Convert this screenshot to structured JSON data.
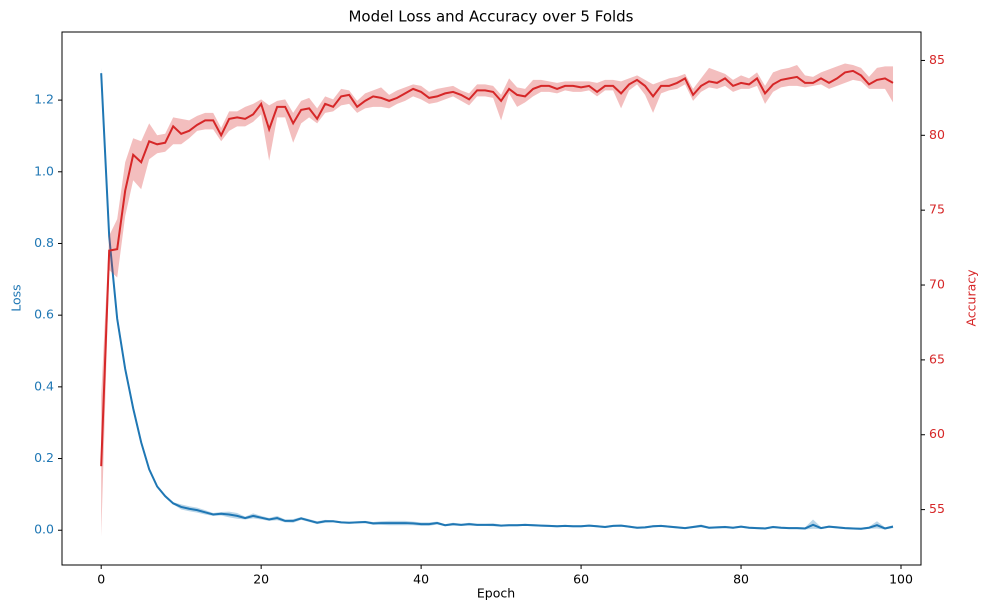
{
  "chart_data": {
    "type": "line-band",
    "title": "Model Loss and Accuracy over 5 Folds",
    "xlabel": "Epoch",
    "ylabel": "Loss",
    "y2label": "Accuracy",
    "x": [
      0,
      1,
      2,
      3,
      4,
      5,
      6,
      7,
      8,
      9,
      10,
      11,
      12,
      13,
      14,
      15,
      16,
      17,
      18,
      19,
      20,
      21,
      22,
      23,
      24,
      25,
      26,
      27,
      28,
      29,
      30,
      31,
      32,
      33,
      34,
      35,
      36,
      37,
      38,
      39,
      40,
      41,
      42,
      43,
      44,
      45,
      46,
      47,
      48,
      49,
      50,
      51,
      52,
      53,
      54,
      55,
      56,
      57,
      58,
      59,
      60,
      61,
      62,
      63,
      64,
      65,
      66,
      67,
      68,
      69,
      70,
      71,
      72,
      73,
      74,
      75,
      76,
      77,
      78,
      79,
      80,
      81,
      82,
      83,
      84,
      85,
      86,
      87,
      88,
      89,
      90,
      91,
      92,
      93,
      94,
      95,
      96,
      97,
      98,
      99
    ],
    "xlim": [
      -4.9,
      102.5
    ],
    "xticks": [
      0,
      20,
      40,
      60,
      80,
      100
    ],
    "ylim": [
      -0.097,
      1.39
    ],
    "yticks": [
      {
        "value": 0,
        "label": "0.0"
      },
      0.2,
      0.4,
      0.6,
      0.8,
      {
        "value": 1,
        "label": "1.0"
      },
      1.2
    ],
    "y2lim": [
      51.3,
      86.9
    ],
    "y2ticks": [
      55,
      60,
      65,
      70,
      75,
      80,
      85
    ],
    "series": [
      {
        "color": "#1f77b4",
        "axis": "y",
        "values": [
          1.275,
          0.82,
          0.59,
          0.45,
          0.34,
          0.245,
          0.17,
          0.122,
          0.095,
          0.075,
          0.065,
          0.06,
          0.056,
          0.05,
          0.044,
          0.046,
          0.044,
          0.04,
          0.034,
          0.04,
          0.035,
          0.03,
          0.034,
          0.026,
          0.026,
          0.033,
          0.027,
          0.021,
          0.025,
          0.025,
          0.022,
          0.021,
          0.022,
          0.023,
          0.019,
          0.02,
          0.02,
          0.02,
          0.02,
          0.019,
          0.017,
          0.017,
          0.02,
          0.014,
          0.017,
          0.015,
          0.017,
          0.015,
          0.015,
          0.015,
          0.013,
          0.014,
          0.014,
          0.015,
          0.014,
          0.013,
          0.012,
          0.011,
          0.012,
          0.011,
          0.011,
          0.013,
          0.011,
          0.009,
          0.012,
          0.013,
          0.01,
          0.007,
          0.008,
          0.011,
          0.012,
          0.01,
          0.008,
          0.006,
          0.009,
          0.012,
          0.007,
          0.008,
          0.009,
          0.007,
          0.01,
          0.007,
          0.006,
          0.005,
          0.009,
          0.007,
          0.006,
          0.006,
          0.005,
          0.015,
          0.006,
          0.01,
          0.008,
          0.006,
          0.005,
          0.004,
          0.007,
          0.014,
          0.005,
          0.01
        ],
        "lower": [
          1.26,
          0.8,
          0.575,
          0.44,
          0.33,
          0.238,
          0.165,
          0.118,
          0.092,
          0.072,
          0.058,
          0.053,
          0.049,
          0.044,
          0.04,
          0.041,
          0.036,
          0.032,
          0.03,
          0.033,
          0.03,
          0.026,
          0.028,
          0.022,
          0.021,
          0.029,
          0.023,
          0.017,
          0.021,
          0.022,
          0.019,
          0.018,
          0.019,
          0.02,
          0.015,
          0.015,
          0.014,
          0.014,
          0.014,
          0.014,
          0.012,
          0.012,
          0.016,
          0.011,
          0.013,
          0.012,
          0.013,
          0.012,
          0.012,
          0.011,
          0.01,
          0.011,
          0.011,
          0.012,
          0.011,
          0.01,
          0.009,
          0.008,
          0.009,
          0.008,
          0.008,
          0.01,
          0.008,
          0.006,
          0.009,
          0.01,
          0.007,
          0.004,
          0.005,
          0.008,
          0.009,
          0.007,
          0.005,
          0.003,
          0.006,
          0.008,
          0.004,
          0.005,
          0.006,
          0.004,
          0.007,
          0.004,
          0.003,
          0.002,
          0.006,
          0.004,
          0.003,
          0.003,
          0.002,
          0.004,
          0.003,
          0.007,
          0.005,
          0.003,
          0.002,
          0.001,
          0.004,
          0.005,
          0.002,
          0.006
        ],
        "upper": [
          1.29,
          0.84,
          0.605,
          0.46,
          0.35,
          0.252,
          0.175,
          0.126,
          0.098,
          0.078,
          0.072,
          0.067,
          0.063,
          0.056,
          0.048,
          0.051,
          0.052,
          0.048,
          0.038,
          0.047,
          0.04,
          0.034,
          0.04,
          0.03,
          0.031,
          0.037,
          0.031,
          0.025,
          0.029,
          0.028,
          0.025,
          0.024,
          0.025,
          0.026,
          0.023,
          0.025,
          0.026,
          0.026,
          0.026,
          0.024,
          0.022,
          0.022,
          0.024,
          0.017,
          0.021,
          0.018,
          0.021,
          0.018,
          0.018,
          0.019,
          0.016,
          0.017,
          0.017,
          0.018,
          0.017,
          0.016,
          0.015,
          0.014,
          0.015,
          0.014,
          0.014,
          0.016,
          0.014,
          0.012,
          0.015,
          0.016,
          0.013,
          0.01,
          0.011,
          0.014,
          0.015,
          0.013,
          0.011,
          0.009,
          0.012,
          0.016,
          0.01,
          0.011,
          0.012,
          0.01,
          0.013,
          0.01,
          0.009,
          0.008,
          0.012,
          0.01,
          0.009,
          0.009,
          0.008,
          0.03,
          0.009,
          0.013,
          0.011,
          0.009,
          0.008,
          0.007,
          0.01,
          0.025,
          0.008,
          0.014
        ]
      },
      {
        "color": "#d62728",
        "axis": "y2",
        "values": [
          57.9,
          72.3,
          72.4,
          76.3,
          78.7,
          78.2,
          79.6,
          79.4,
          79.5,
          80.6,
          80.1,
          80.3,
          80.7,
          81.0,
          81.0,
          80.0,
          81.1,
          81.2,
          81.1,
          81.4,
          82.1,
          80.4,
          81.9,
          81.9,
          80.8,
          81.7,
          81.8,
          81.1,
          82.1,
          81.9,
          82.6,
          82.7,
          81.9,
          82.3,
          82.6,
          82.5,
          82.3,
          82.5,
          82.8,
          83.1,
          82.9,
          82.5,
          82.6,
          82.8,
          82.9,
          82.7,
          82.4,
          83.0,
          83.0,
          82.9,
          82.3,
          83.1,
          82.7,
          82.6,
          83.1,
          83.3,
          83.3,
          83.1,
          83.3,
          83.3,
          83.2,
          83.3,
          82.9,
          83.3,
          83.3,
          82.8,
          83.4,
          83.7,
          83.3,
          82.6,
          83.3,
          83.3,
          83.5,
          83.8,
          82.7,
          83.3,
          83.6,
          83.5,
          83.8,
          83.3,
          83.5,
          83.4,
          83.8,
          82.8,
          83.4,
          83.7,
          83.8,
          83.9,
          83.5,
          83.5,
          83.8,
          83.5,
          83.8,
          84.2,
          84.3,
          84.0,
          83.4,
          83.7,
          83.8,
          83.5
        ],
        "lower": [
          53.2,
          71.0,
          70.5,
          74.6,
          77.0,
          76.4,
          78.4,
          78.8,
          78.9,
          79.4,
          79.4,
          79.8,
          80.3,
          80.4,
          80.4,
          79.6,
          80.3,
          80.6,
          80.6,
          80.9,
          81.4,
          78.3,
          81.2,
          81.2,
          79.5,
          80.8,
          81.2,
          80.8,
          81.5,
          81.6,
          82.0,
          82.1,
          81.5,
          81.8,
          81.9,
          81.9,
          81.8,
          82.1,
          82.3,
          82.6,
          82.4,
          82.1,
          82.2,
          82.4,
          82.6,
          82.3,
          82.0,
          82.6,
          82.6,
          82.5,
          81.0,
          82.8,
          81.9,
          82.2,
          82.6,
          82.9,
          82.9,
          82.8,
          83.0,
          82.9,
          82.9,
          83.0,
          82.6,
          83.0,
          83.0,
          81.8,
          83.0,
          83.4,
          82.7,
          81.5,
          82.8,
          83.0,
          83.1,
          83.4,
          82.3,
          82.9,
          83.2,
          83.1,
          83.3,
          82.9,
          83.1,
          83.1,
          83.3,
          82.1,
          82.9,
          83.2,
          83.3,
          83.3,
          83.2,
          83.3,
          83.4,
          83.1,
          83.3,
          83.5,
          83.7,
          83.6,
          83.1,
          83.1,
          83.1,
          82.2
        ],
        "upper": [
          62.6,
          73.3,
          74.4,
          78.2,
          79.8,
          79.6,
          80.8,
          80.0,
          80.1,
          81.2,
          81.1,
          81.0,
          81.3,
          81.5,
          81.5,
          80.5,
          81.6,
          81.6,
          81.9,
          82.1,
          82.4,
          82.0,
          82.3,
          82.4,
          81.5,
          82.3,
          82.5,
          81.8,
          82.6,
          82.4,
          83.1,
          83.0,
          82.3,
          82.8,
          83.0,
          83.2,
          82.7,
          83.0,
          83.2,
          83.4,
          83.3,
          82.9,
          83.1,
          83.2,
          83.3,
          83.0,
          82.8,
          83.4,
          83.4,
          83.3,
          82.7,
          83.8,
          83.2,
          83.1,
          83.7,
          83.7,
          83.6,
          83.5,
          83.6,
          83.6,
          83.6,
          83.6,
          83.5,
          83.7,
          83.7,
          83.6,
          83.8,
          84.0,
          83.7,
          83.4,
          83.6,
          83.8,
          83.9,
          84.1,
          83.1,
          83.8,
          84.5,
          84.3,
          84.1,
          83.7,
          84.0,
          83.8,
          84.2,
          83.3,
          84.2,
          84.4,
          84.5,
          84.7,
          84.0,
          83.9,
          84.2,
          84.4,
          84.6,
          84.8,
          84.7,
          84.5,
          83.9,
          84.5,
          84.6,
          84.6
        ]
      }
    ]
  }
}
